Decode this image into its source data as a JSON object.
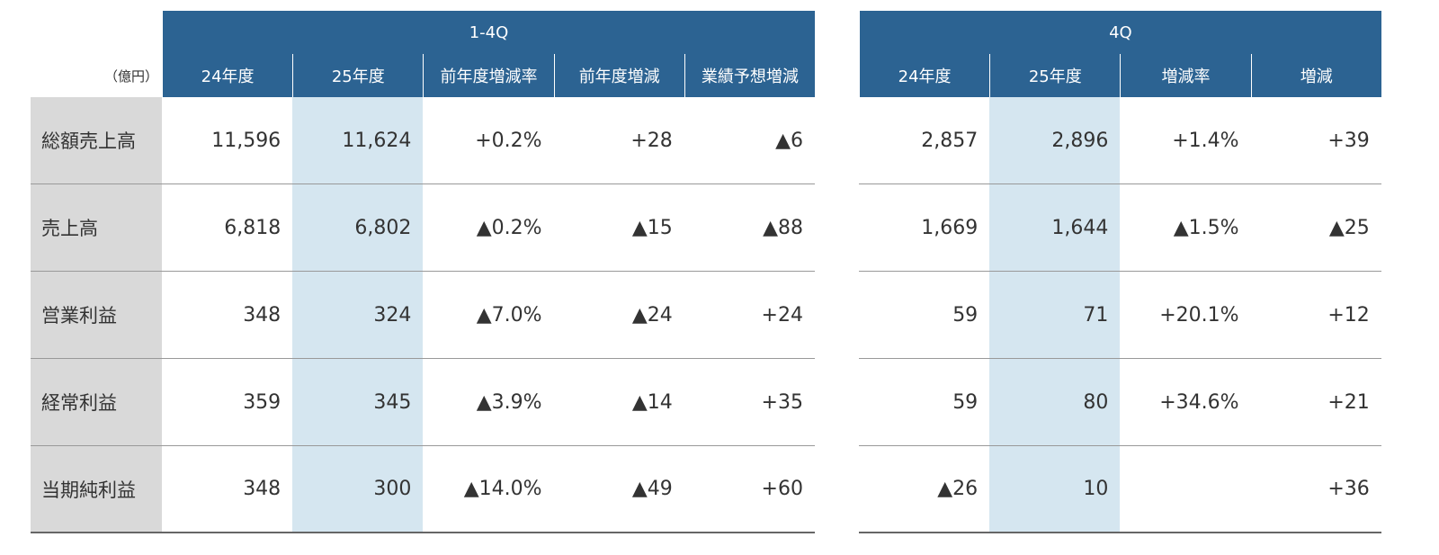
{
  "unit": "（億円）",
  "row_labels": [
    "総額売上高",
    "売上高",
    "営業利益",
    "経常利益",
    "当期純利益"
  ],
  "tables": [
    {
      "title": "1-4Q",
      "columns": [
        "24年度",
        "25年度",
        "前年度増減率",
        "前年度増減",
        "業績予想増減"
      ],
      "rows": [
        [
          "11,596",
          "11,624",
          "+0.2%",
          "+28",
          "▲6"
        ],
        [
          "6,818",
          "6,802",
          "▲0.2%",
          "▲15",
          "▲88"
        ],
        [
          "348",
          "324",
          "▲7.0%",
          "▲24",
          "+24"
        ],
        [
          "359",
          "345",
          "▲3.9%",
          "▲14",
          "+35"
        ],
        [
          "348",
          "300",
          "▲14.0%",
          "▲49",
          "+60"
        ]
      ]
    },
    {
      "title": "4Q",
      "columns": [
        "24年度",
        "25年度",
        "増減率",
        "増減"
      ],
      "rows": [
        [
          "2,857",
          "2,896",
          "+1.4%",
          "+39"
        ],
        [
          "1,669",
          "1,644",
          "▲1.5%",
          "▲25"
        ],
        [
          "59",
          "71",
          "+20.1%",
          "+12"
        ],
        [
          "59",
          "80",
          "+34.6%",
          "+21"
        ],
        [
          "▲26",
          "10",
          null,
          "+36"
        ]
      ]
    }
  ]
}
